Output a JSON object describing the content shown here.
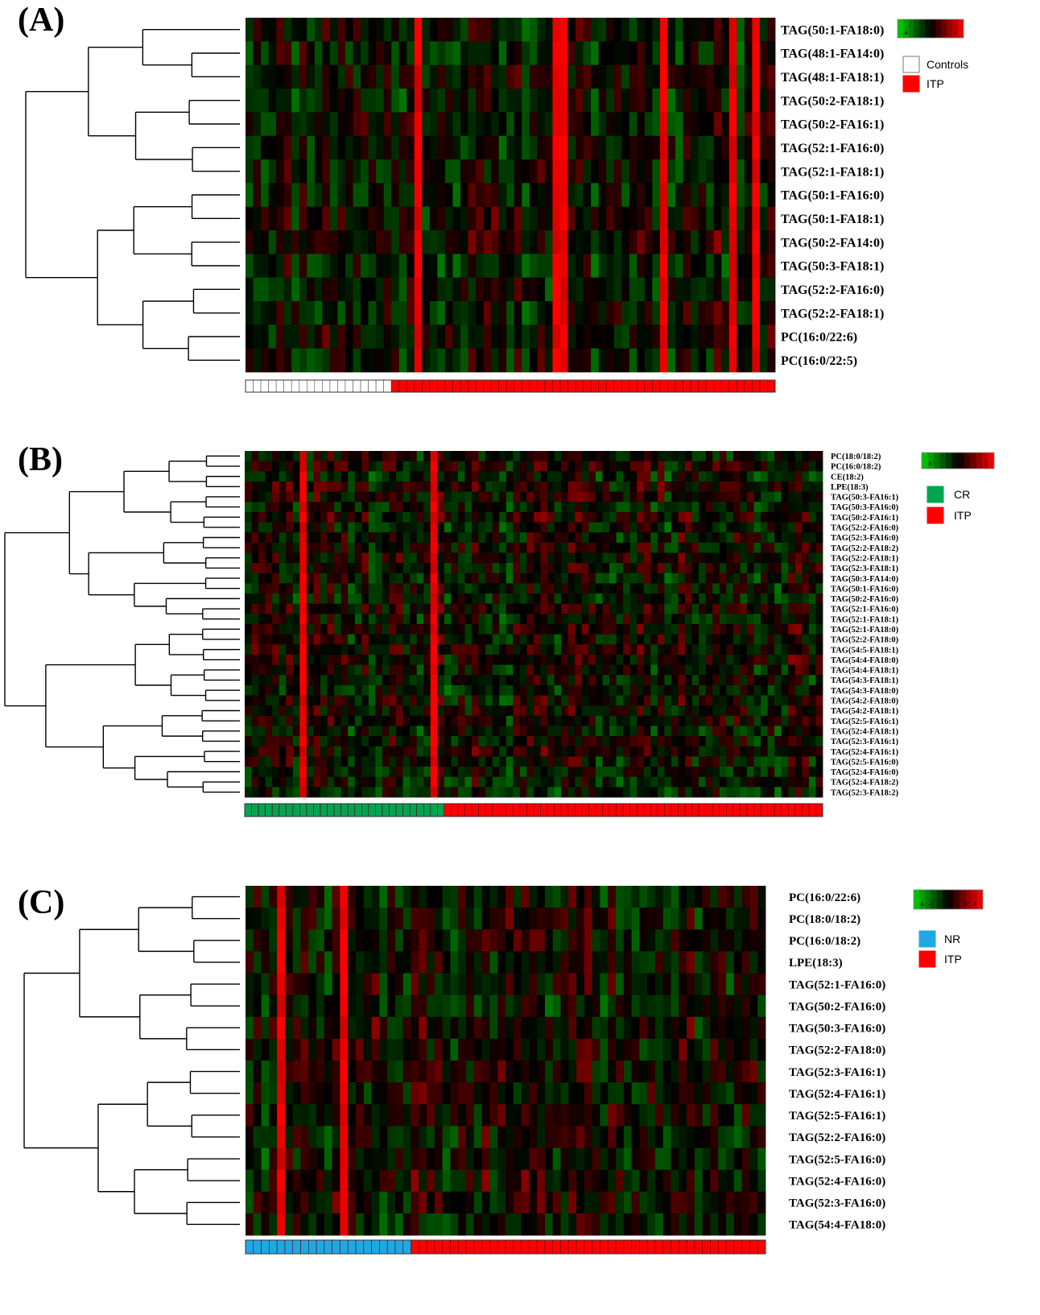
{
  "panels": [
    {
      "id": "A",
      "label": "(A)",
      "legend_groups": [
        {
          "name": "Controls",
          "color": "#ffffff"
        },
        {
          "name": "ITP",
          "color": "#ff0000"
        }
      ],
      "scale_ticks": [
        "-4",
        "-2",
        "0",
        "2",
        "4"
      ],
      "colors": {
        "low": "#00ff00",
        "mid": "#000000",
        "high": "#ff0000"
      }
    },
    {
      "id": "B",
      "label": "(B)",
      "legend_groups": [
        {
          "name": "CR",
          "color": "#00a550"
        },
        {
          "name": "ITP",
          "color": "#ff0000"
        }
      ],
      "scale_ticks": [
        "-5",
        "0",
        "5"
      ],
      "colors": {
        "low": "#00ff00",
        "mid": "#000000",
        "high": "#ff0000"
      }
    },
    {
      "id": "C",
      "label": "(C)",
      "legend_groups": [
        {
          "name": "NR",
          "color": "#1ea9e6"
        },
        {
          "name": "ITP",
          "color": "#ff0000"
        }
      ],
      "scale_ticks": [
        "-6",
        "-4",
        "-2",
        "0",
        "2",
        "4",
        "6"
      ],
      "colors": {
        "low": "#00ff00",
        "mid": "#000000",
        "high": "#ff0000"
      }
    }
  ],
  "chart_data": [
    {
      "type": "heatmap",
      "panel": "A",
      "rows": [
        "TAG(50:1-FA18:0)",
        "TAG(48:1-FA14:0)",
        "TAG(48:1-FA18:1)",
        "TAG(50:2-FA18:1)",
        "TAG(50:2-FA16:1)",
        "TAG(52:1-FA16:0)",
        "TAG(52:1-FA18:1)",
        "TAG(50:1-FA16:0)",
        "TAG(50:1-FA18:1)",
        "TAG(50:2-FA14:0)",
        "TAG(50:3-FA18:1)",
        "TAG(52:2-FA16:0)",
        "TAG(52:2-FA18:1)",
        "PC(16:0/22:6)",
        "PC(16:0/22:5)"
      ],
      "groups": [
        {
          "name": "Controls",
          "count": 19
        },
        {
          "name": "ITP",
          "count": 50
        }
      ],
      "color_range": [
        -4,
        4
      ],
      "strong_columns": [
        22,
        40,
        41,
        54,
        63,
        66
      ],
      "dendrogram": "left"
    },
    {
      "type": "heatmap",
      "panel": "B",
      "rows": [
        "PC(18:0/18:2)",
        "PC(16:0/18:2)",
        "CE(18:2)",
        "LPE(18:3)",
        "TAG(50:3-FA16:1)",
        "TAG(50:3-FA16:0)",
        "TAG(50:2-FA16:1)",
        "TAG(52:2-FA16:0)",
        "TAG(52:3-FA16:0)",
        "TAG(52:2-FA18:2)",
        "TAG(52:2-FA18:1)",
        "TAG(52:3-FA18:1)",
        "TAG(50:3-FA14:0)",
        "TAG(50:1-FA16:0)",
        "TAG(50:2-FA16:0)",
        "TAG(52:1-FA16:0)",
        "TAG(52:1-FA18:1)",
        "TAG(52:1-FA18:0)",
        "TAG(52:2-FA18:0)",
        "TAG(54:5-FA18:1)",
        "TAG(54:4-FA18:0)",
        "TAG(54:4-FA18:1)",
        "TAG(54:3-FA18:1)",
        "TAG(54:3-FA18:0)",
        "TAG(54:2-FA18:0)",
        "TAG(54:2-FA18:1)",
        "TAG(52:5-FA16:1)",
        "TAG(52:4-FA18:1)",
        "TAG(52:3-FA16:1)",
        "TAG(52:4-FA16:1)",
        "TAG(52:5-FA16:0)",
        "TAG(52:4-FA16:0)",
        "TAG(52:4-FA18:2)",
        "TAG(52:3-FA18:2)"
      ],
      "groups": [
        {
          "name": "CR",
          "count": 29
        },
        {
          "name": "ITP",
          "count": 55
        }
      ],
      "color_range": [
        -5,
        5
      ],
      "strong_columns": [
        8,
        27
      ],
      "dendrogram": "left"
    },
    {
      "type": "heatmap",
      "panel": "C",
      "rows": [
        "PC(16:0/22:6)",
        "PC(18:0/18:2)",
        "PC(16:0/18:2)",
        "LPE(18:3)",
        "TAG(52:1-FA16:0)",
        "TAG(50:2-FA16:0)",
        "TAG(50:3-FA16:0)",
        "TAG(52:2-FA18:0)",
        "TAG(52:3-FA16:1)",
        "TAG(52:4-FA16:1)",
        "TAG(52:5-FA16:1)",
        "TAG(52:2-FA16:0)",
        "TAG(52:5-FA16:0)",
        "TAG(52:4-FA16:0)",
        "TAG(52:3-FA16:0)",
        "TAG(54:4-FA18:0)"
      ],
      "groups": [
        {
          "name": "NR",
          "count": 21
        },
        {
          "name": "ITP",
          "count": 45
        }
      ],
      "color_range": [
        -6,
        6
      ],
      "strong_columns": [
        4,
        12
      ],
      "dendrogram": "left"
    }
  ]
}
